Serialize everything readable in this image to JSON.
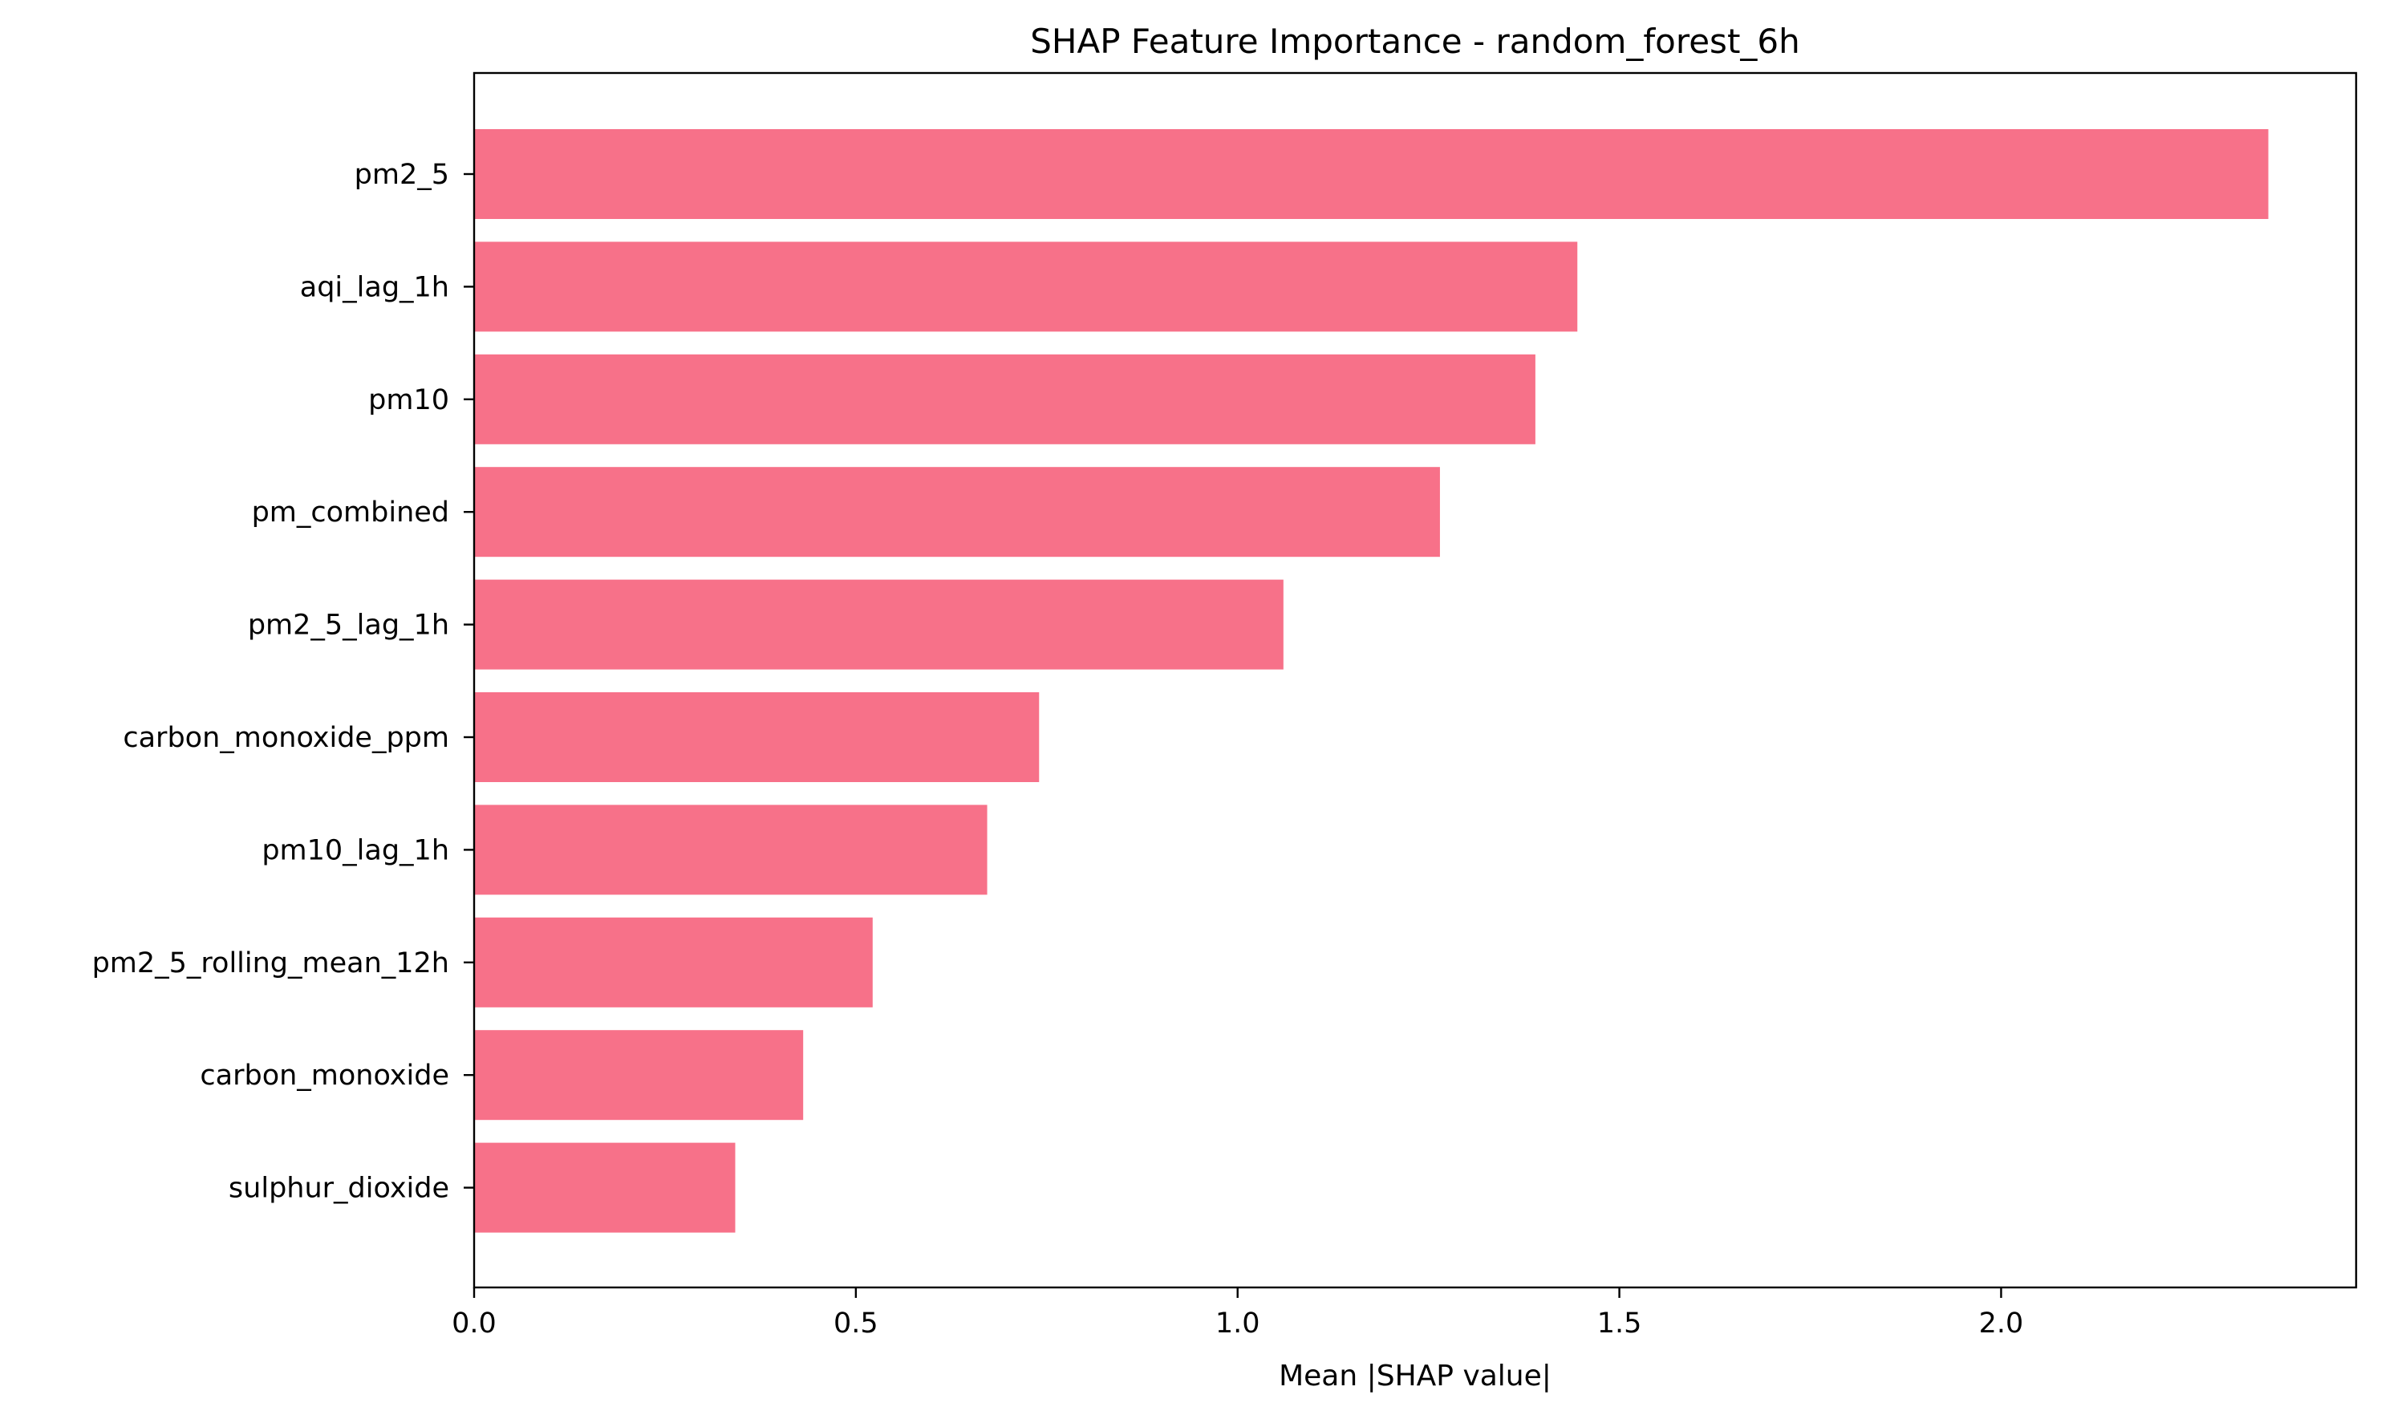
{
  "chart_data": {
    "type": "bar",
    "orientation": "horizontal",
    "title": "SHAP Feature Importance - random_forest_6h",
    "xlabel": "Mean |SHAP value|",
    "ylabel": "",
    "xlim": [
      0,
      2.465
    ],
    "xticks": [
      "0.0",
      "0.5",
      "1.0",
      "1.5",
      "2.0"
    ],
    "grid": false,
    "bar_color": "#f77189",
    "categories": [
      "pm2_5",
      "aqi_lag_1h",
      "pm10",
      "pm_combined",
      "pm2_5_lag_1h",
      "carbon_monoxide_ppm",
      "pm10_lag_1h",
      "pm2_5_rolling_mean_12h",
      "carbon_monoxide",
      "sulphur_dioxide"
    ],
    "values": [
      2.35,
      1.445,
      1.39,
      1.265,
      1.06,
      0.74,
      0.672,
      0.522,
      0.431,
      0.342
    ]
  }
}
